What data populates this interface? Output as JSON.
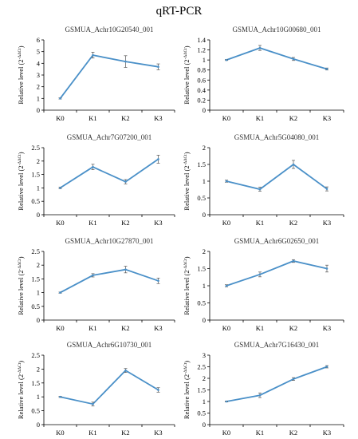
{
  "figure": {
    "title": "qRT-PCR"
  },
  "colors": {
    "line": "#4A90C8",
    "axis": "#000000"
  },
  "chart_data": [
    {
      "type": "line",
      "title": "GSMUA_Achr10G20540_001",
      "ylabel": "Relative level (2-ΔΔCt)",
      "ylabel_main": "Relative level (2",
      "ylabel_sup": "-ΔΔCt",
      "ylabel_tail": ")",
      "categories": [
        "K0",
        "K1",
        "K2",
        "K3"
      ],
      "values": [
        1.0,
        4.7,
        4.15,
        3.7
      ],
      "errors": [
        0.05,
        0.25,
        0.5,
        0.25
      ],
      "ylim": [
        0,
        6
      ],
      "yticks": [
        0,
        1,
        2,
        3,
        4,
        5,
        6
      ],
      "ytick_labels": [
        "0",
        "1",
        "2",
        "3",
        "4",
        "5",
        "6"
      ]
    },
    {
      "type": "line",
      "title": "GSMUA_Achr10G00680_001",
      "ylabel": "Relative level (2-ΔΔCt)",
      "ylabel_main": "Relative level (2",
      "ylabel_sup": "-ΔΔCt",
      "ylabel_tail": ")",
      "categories": [
        "K0",
        "K1",
        "K2",
        "K3"
      ],
      "values": [
        1.0,
        1.24,
        1.02,
        0.82
      ],
      "errors": [
        0.01,
        0.05,
        0.03,
        0.02
      ],
      "ylim": [
        0,
        1.4
      ],
      "yticks": [
        0,
        0.2,
        0.4,
        0.6,
        0.8,
        1,
        1.2,
        1.4
      ],
      "ytick_labels": [
        "0",
        "0.2",
        "0.4",
        "0.6",
        "0.8",
        "1",
        "1.2",
        "1.4"
      ]
    },
    {
      "type": "line",
      "title": "GSMUA_Achr7G07200_001",
      "ylabel": "Relative level (2-ΔΔCt)",
      "ylabel_main": "Relative level (2",
      "ylabel_sup": "-ΔΔCt",
      "ylabel_tail": ")",
      "categories": [
        "K0",
        "K1",
        "K2",
        "K3"
      ],
      "values": [
        1.0,
        1.78,
        1.23,
        2.07
      ],
      "errors": [
        0.03,
        0.1,
        0.08,
        0.15
      ],
      "ylim": [
        0,
        2.5
      ],
      "yticks": [
        0,
        0.5,
        1,
        1.5,
        2,
        2.5
      ],
      "ytick_labels": [
        "0",
        "0.5",
        "1",
        "1.5",
        "2",
        "2.5"
      ]
    },
    {
      "type": "line",
      "title": "GSMUA_Achr5G04080_001",
      "ylabel": "Relative level (2-ΔΔCt)",
      "ylabel_main": "Relative level (2",
      "ylabel_sup": "-ΔΔCt",
      "ylabel_tail": ")",
      "categories": [
        "K0",
        "K1",
        "K2",
        "K3"
      ],
      "values": [
        1.0,
        0.76,
        1.5,
        0.77
      ],
      "errors": [
        0.03,
        0.06,
        0.12,
        0.06
      ],
      "ylim": [
        0,
        2
      ],
      "yticks": [
        0,
        0.5,
        1,
        1.5,
        2
      ],
      "ytick_labels": [
        "0",
        "0.5",
        "1",
        "1.5",
        "2"
      ]
    },
    {
      "type": "line",
      "title": "GSMUA_Achr10G27870_001",
      "ylabel": "Relative level (2-ΔΔCt)",
      "ylabel_main": "Relative level (2",
      "ylabel_sup": "-ΔΔCt",
      "ylabel_tail": ")",
      "categories": [
        "K0",
        "K1",
        "K2",
        "K3"
      ],
      "values": [
        1.0,
        1.63,
        1.84,
        1.43
      ],
      "errors": [
        0.02,
        0.06,
        0.12,
        0.1
      ],
      "ylim": [
        0,
        2.5
      ],
      "yticks": [
        0,
        0.5,
        1,
        1.5,
        2,
        2.5
      ],
      "ytick_labels": [
        "0",
        "0.5",
        "1",
        "1.5",
        "2",
        "2.5"
      ]
    },
    {
      "type": "line",
      "title": "GSMUA_Achr6G02650_001",
      "ylabel": "Relative level (2-ΔΔCt)",
      "ylabel_main": "Relative level (2",
      "ylabel_sup": "-ΔΔCt",
      "ylabel_tail": ")",
      "categories": [
        "K0",
        "K1",
        "K2",
        "K3"
      ],
      "values": [
        1.0,
        1.33,
        1.72,
        1.5
      ],
      "errors": [
        0.03,
        0.07,
        0.04,
        0.1
      ],
      "ylim": [
        0,
        2
      ],
      "yticks": [
        0,
        0.5,
        1,
        1.5,
        2
      ],
      "ytick_labels": [
        "0",
        "0.5",
        "1",
        "1.5",
        "2"
      ]
    },
    {
      "type": "line",
      "title": "GSMUA_Achr6G10730_001",
      "ylabel": "Relative level (2-ΔΔCt)",
      "ylabel_main": "Relative level (2",
      "ylabel_sup": "-ΔΔCt",
      "ylabel_tail": ")",
      "categories": [
        "K0",
        "K1",
        "K2",
        "K3"
      ],
      "values": [
        1.0,
        0.74,
        1.95,
        1.25
      ],
      "errors": [
        0.02,
        0.07,
        0.07,
        0.08
      ],
      "ylim": [
        0,
        2.5
      ],
      "yticks": [
        0,
        0.5,
        1,
        1.5,
        2,
        2.5
      ],
      "ytick_labels": [
        "0",
        "0.5",
        "1",
        "1.5",
        "2",
        "2.5"
      ]
    },
    {
      "type": "line",
      "title": "GSMUA_Achr7G16430_001",
      "ylabel": "Relative level (2-ΔΔCt)",
      "ylabel_main": "Relative level (2",
      "ylabel_sup": "-ΔΔCt",
      "ylabel_tail": ")",
      "categories": [
        "K0",
        "K1",
        "K2",
        "K3"
      ],
      "values": [
        1.0,
        1.27,
        1.97,
        2.5
      ],
      "errors": [
        0.02,
        0.1,
        0.06,
        0.05
      ],
      "ylim": [
        0,
        3
      ],
      "yticks": [
        0,
        0.5,
        1,
        1.5,
        2,
        2.5,
        3
      ],
      "ytick_labels": [
        "0",
        "0.5",
        "1",
        "1.5",
        "2",
        "2.5",
        "3"
      ]
    }
  ]
}
